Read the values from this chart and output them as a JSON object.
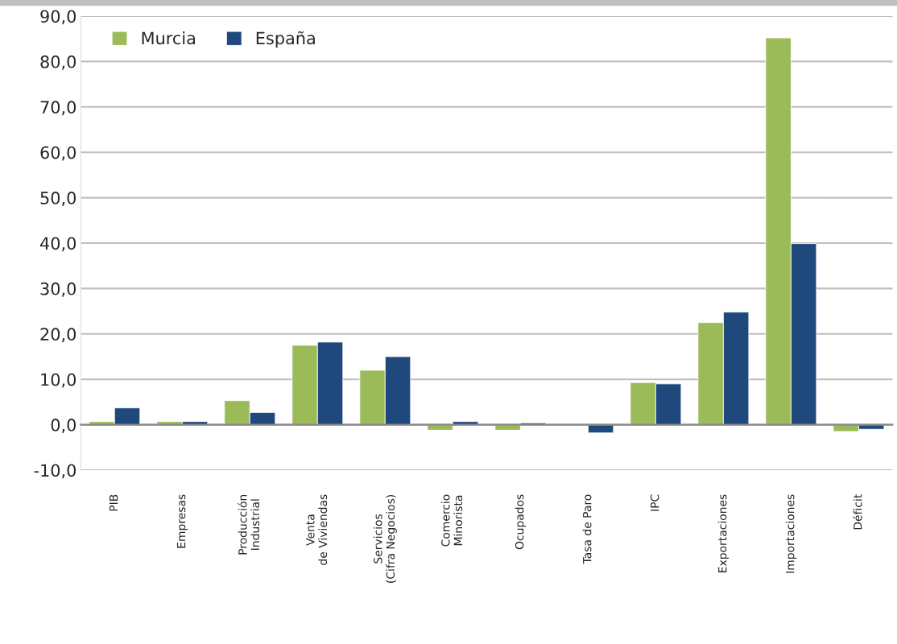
{
  "chart_data": {
    "type": "bar",
    "categories": [
      "PIB",
      "Empresas",
      "Producción\nIndustrial",
      "Venta\nde Viviendas",
      "Servicios\n(Cifra Negocios)",
      "Comercio\nMinorista",
      "Ocupados",
      "Tasa de Paro",
      "IPC",
      "Exportaciones",
      "Importaciones",
      "Déficit"
    ],
    "series": [
      {
        "name": "Murcia",
        "color": "#9bbb59",
        "values": [
          0.7,
          0.7,
          5.3,
          17.5,
          12.0,
          -1.2,
          -1.2,
          null,
          9.3,
          22.5,
          85.2,
          -1.5
        ]
      },
      {
        "name": "España",
        "color": "#1f497d",
        "values": [
          3.7,
          0.7,
          2.7,
          18.2,
          15.0,
          0.7,
          0.4,
          -1.8,
          9.0,
          24.8,
          39.9,
          -1.0
        ]
      }
    ],
    "ylim": [
      -10,
      90
    ],
    "yticks": [
      {
        "value": -10,
        "label": "-10,0"
      },
      {
        "value": 0,
        "label": "0,0"
      },
      {
        "value": 10,
        "label": "10,0"
      },
      {
        "value": 20,
        "label": "20,0"
      },
      {
        "value": 30,
        "label": "30,0"
      },
      {
        "value": 40,
        "label": "40,0"
      },
      {
        "value": 50,
        "label": "50,0"
      },
      {
        "value": 60,
        "label": "60,0"
      },
      {
        "value": 70,
        "label": "70,0"
      },
      {
        "value": 80,
        "label": "80,0"
      },
      {
        "value": 90,
        "label": "90,0"
      }
    ],
    "grid": "y",
    "legend": "top left"
  }
}
